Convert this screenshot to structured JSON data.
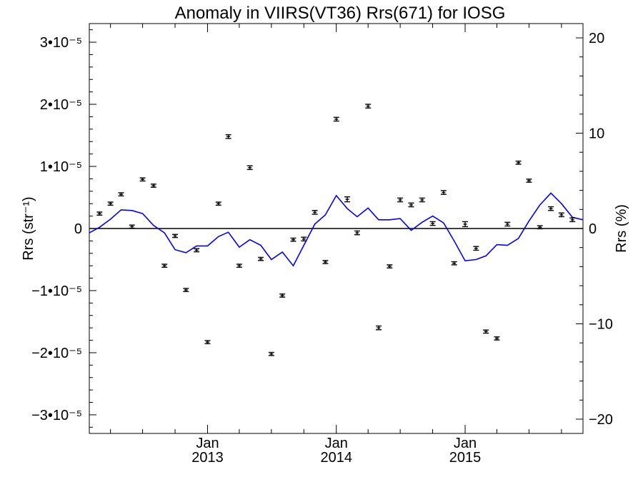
{
  "chart_data": {
    "type": "scatter",
    "title": "Anomaly in VIIRS(VT36) Rrs(671) for IOSG",
    "ylabel_left": "Rrs (str⁻¹)",
    "ylabel_right": "Rrs (%)",
    "xlabel": "",
    "grid": false,
    "legend": "none",
    "colors": {
      "points": "#000000",
      "line": "#0000ff",
      "zero_line": "#000000"
    },
    "xlim": [
      "2012-02-01",
      "2015-12-01"
    ],
    "ylim": [
      -3.3e-05,
      3.3e-05
    ],
    "ylim_right": [
      -21.5,
      21.5
    ],
    "x_ticks_major": [
      {
        "date": "2013-01-01",
        "month": "Jan",
        "year": "2013"
      },
      {
        "date": "2014-01-01",
        "month": "Jan",
        "year": "2014"
      },
      {
        "date": "2015-01-01",
        "month": "Jan",
        "year": "2015"
      }
    ],
    "x_ticks_minor": [
      "2012-04-01",
      "2012-07-01",
      "2012-10-01",
      "2013-04-01",
      "2013-07-01",
      "2013-10-01",
      "2014-04-01",
      "2014-07-01",
      "2014-10-01",
      "2015-04-01",
      "2015-07-01",
      "2015-10-01"
    ],
    "y_ticks_left": [
      {
        "value": 3e-05,
        "label": "3•10⁻⁵"
      },
      {
        "value": 2e-05,
        "label": "2•10⁻⁵"
      },
      {
        "value": 1e-05,
        "label": "1•10⁻⁵"
      },
      {
        "value": 0,
        "label": "0"
      },
      {
        "value": -1e-05,
        "label": "−1•10⁻⁵"
      },
      {
        "value": -2e-05,
        "label": "−2•10⁻⁵"
      },
      {
        "value": -3e-05,
        "label": "−3•10⁻⁵"
      }
    ],
    "y_ticks_right": [
      {
        "value": 20,
        "label": "20"
      },
      {
        "value": 10,
        "label": "10"
      },
      {
        "value": 0,
        "label": "0"
      },
      {
        "value": -10,
        "label": "−10"
      },
      {
        "value": -20,
        "label": "−20"
      }
    ],
    "points": [
      {
        "x": "2012-03-01",
        "y": 2.4e-06,
        "err": 2.5e-07
      },
      {
        "x": "2012-04-01",
        "y": 4e-06,
        "err": 2.5e-07
      },
      {
        "x": "2012-05-01",
        "y": 5.5e-06,
        "err": 2.5e-07
      },
      {
        "x": "2012-06-01",
        "y": 3e-07,
        "err": 2.5e-07
      },
      {
        "x": "2012-07-01",
        "y": 7.9e-06,
        "err": 2.5e-07
      },
      {
        "x": "2012-08-01",
        "y": 6.9e-06,
        "err": 2.5e-07
      },
      {
        "x": "2012-09-01",
        "y": -6e-06,
        "err": 2.5e-07
      },
      {
        "x": "2012-10-01",
        "y": -1.2e-06,
        "err": 2.5e-07
      },
      {
        "x": "2012-11-01",
        "y": -9.9e-06,
        "err": 2.5e-07
      },
      {
        "x": "2012-12-01",
        "y": -3.5e-06,
        "err": 2.5e-07
      },
      {
        "x": "2013-01-01",
        "y": -1.83e-05,
        "err": 2.5e-07
      },
      {
        "x": "2013-02-01",
        "y": 4e-06,
        "err": 2.5e-07
      },
      {
        "x": "2013-03-01",
        "y": 1.48e-05,
        "err": 3e-07
      },
      {
        "x": "2013-04-01",
        "y": -6e-06,
        "err": 2.5e-07
      },
      {
        "x": "2013-05-01",
        "y": 9.8e-06,
        "err": 3e-07
      },
      {
        "x": "2013-06-01",
        "y": -4.9e-06,
        "err": 2.5e-07
      },
      {
        "x": "2013-07-01",
        "y": -2.02e-05,
        "err": 2.5e-07
      },
      {
        "x": "2013-08-01",
        "y": -1.08e-05,
        "err": 2.5e-07
      },
      {
        "x": "2013-09-01",
        "y": -1.8e-06,
        "err": 2.5e-07
      },
      {
        "x": "2013-10-01",
        "y": -1.7e-06,
        "err": 3e-07
      },
      {
        "x": "2013-11-01",
        "y": 2.6e-06,
        "err": 3e-07
      },
      {
        "x": "2013-12-01",
        "y": -5.4e-06,
        "err": 2.5e-07
      },
      {
        "x": "2014-01-01",
        "y": 1.76e-05,
        "err": 3e-07
      },
      {
        "x": "2014-02-01",
        "y": 4.7e-06,
        "err": 4e-07
      },
      {
        "x": "2014-03-01",
        "y": -7e-07,
        "err": 3e-07
      },
      {
        "x": "2014-04-01",
        "y": 1.97e-05,
        "err": 3e-07
      },
      {
        "x": "2014-05-01",
        "y": -1.6e-05,
        "err": 3e-07
      },
      {
        "x": "2014-06-01",
        "y": -6.1e-06,
        "err": 2.5e-07
      },
      {
        "x": "2014-07-01",
        "y": 4.6e-06,
        "err": 3e-07
      },
      {
        "x": "2014-08-01",
        "y": 3.8e-06,
        "err": 3e-07
      },
      {
        "x": "2014-09-01",
        "y": 4.6e-06,
        "err": 3e-07
      },
      {
        "x": "2014-10-01",
        "y": 8e-07,
        "err": 3e-07
      },
      {
        "x": "2014-11-01",
        "y": 5.8e-06,
        "err": 3e-07
      },
      {
        "x": "2014-12-01",
        "y": -5.6e-06,
        "err": 2.5e-07
      },
      {
        "x": "2015-01-01",
        "y": 7e-07,
        "err": 4e-07
      },
      {
        "x": "2015-02-01",
        "y": -3.2e-06,
        "err": 3e-07
      },
      {
        "x": "2015-03-01",
        "y": -1.66e-05,
        "err": 2.5e-07
      },
      {
        "x": "2015-04-01",
        "y": -1.77e-05,
        "err": 2.5e-07
      },
      {
        "x": "2015-05-01",
        "y": 7e-07,
        "err": 3e-07
      },
      {
        "x": "2015-06-01",
        "y": 1.06e-05,
        "err": 2.5e-07
      },
      {
        "x": "2015-07-01",
        "y": 7.7e-06,
        "err": 2.5e-07
      },
      {
        "x": "2015-08-01",
        "y": 2e-07,
        "err": 2.5e-07
      },
      {
        "x": "2015-09-01",
        "y": 3.2e-06,
        "err": 3e-07
      },
      {
        "x": "2015-10-01",
        "y": 2.2e-06,
        "err": 3e-07
      },
      {
        "x": "2015-11-01",
        "y": 1.4e-06,
        "err": 3e-07
      }
    ],
    "line": [
      {
        "x": "2012-02-01",
        "y": -7e-07
      },
      {
        "x": "2012-03-01",
        "y": 2e-07
      },
      {
        "x": "2012-04-01",
        "y": 1.5e-06
      },
      {
        "x": "2012-05-01",
        "y": 3e-06
      },
      {
        "x": "2012-06-01",
        "y": 2.9e-06
      },
      {
        "x": "2012-07-01",
        "y": 2.4e-06
      },
      {
        "x": "2012-08-01",
        "y": 5e-07
      },
      {
        "x": "2012-09-01",
        "y": -7e-07
      },
      {
        "x": "2012-10-01",
        "y": -3.4e-06
      },
      {
        "x": "2012-11-01",
        "y": -3.9e-06
      },
      {
        "x": "2012-12-01",
        "y": -2.8e-06
      },
      {
        "x": "2013-01-01",
        "y": -2.8e-06
      },
      {
        "x": "2013-02-01",
        "y": -1.3e-06
      },
      {
        "x": "2013-03-01",
        "y": -6e-07
      },
      {
        "x": "2013-04-01",
        "y": -3e-06
      },
      {
        "x": "2013-05-01",
        "y": -1.8e-06
      },
      {
        "x": "2013-06-01",
        "y": -2.7e-06
      },
      {
        "x": "2013-07-01",
        "y": -5e-06
      },
      {
        "x": "2013-08-01",
        "y": -3.8e-06
      },
      {
        "x": "2013-09-01",
        "y": -6e-06
      },
      {
        "x": "2013-10-01",
        "y": -2.7e-06
      },
      {
        "x": "2013-11-01",
        "y": 7e-07
      },
      {
        "x": "2013-12-01",
        "y": 2.2e-06
      },
      {
        "x": "2014-01-01",
        "y": 5.3e-06
      },
      {
        "x": "2014-02-01",
        "y": 3.2e-06
      },
      {
        "x": "2014-03-01",
        "y": 1.9e-06
      },
      {
        "x": "2014-04-01",
        "y": 3.3e-06
      },
      {
        "x": "2014-05-01",
        "y": 1.4e-06
      },
      {
        "x": "2014-06-01",
        "y": 1.4e-06
      },
      {
        "x": "2014-07-01",
        "y": 1.6e-06
      },
      {
        "x": "2014-08-01",
        "y": -3e-07
      },
      {
        "x": "2014-09-01",
        "y": 1e-06
      },
      {
        "x": "2014-10-01",
        "y": 2e-06
      },
      {
        "x": "2014-11-01",
        "y": 9e-07
      },
      {
        "x": "2014-12-01",
        "y": -2e-06
      },
      {
        "x": "2015-01-01",
        "y": -5.2e-06
      },
      {
        "x": "2015-02-01",
        "y": -5e-06
      },
      {
        "x": "2015-03-01",
        "y": -4.4e-06
      },
      {
        "x": "2015-04-01",
        "y": -2.6e-06
      },
      {
        "x": "2015-05-01",
        "y": -2.7e-06
      },
      {
        "x": "2015-06-01",
        "y": -1.6e-06
      },
      {
        "x": "2015-07-01",
        "y": 1.2e-06
      },
      {
        "x": "2015-08-01",
        "y": 3.8e-06
      },
      {
        "x": "2015-09-01",
        "y": 5.7e-06
      },
      {
        "x": "2015-10-01",
        "y": 4e-06
      },
      {
        "x": "2015-11-01",
        "y": 1.8e-06
      },
      {
        "x": "2015-12-01",
        "y": 1.4e-06
      }
    ]
  }
}
